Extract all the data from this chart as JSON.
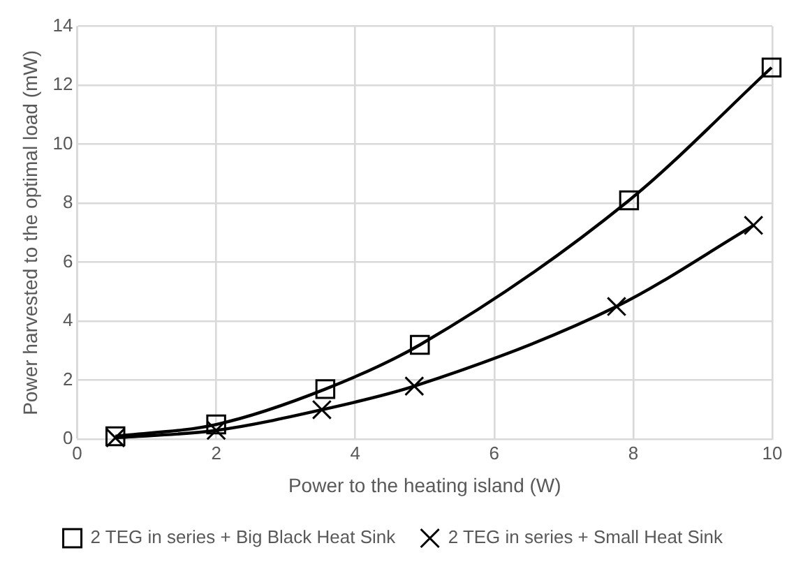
{
  "chart_data": {
    "type": "line",
    "xlabel": "Power to the heating island (W)",
    "ylabel": "Power harvested to the optimal load (mW)",
    "xlim": [
      0,
      10
    ],
    "xticks": [
      0,
      2,
      4,
      6,
      8,
      10
    ],
    "ylim": [
      0,
      14
    ],
    "yticks": [
      0,
      2,
      4,
      6,
      8,
      10,
      12,
      14
    ],
    "grid": true,
    "legend": "bottom",
    "line_style": "solid",
    "series": [
      {
        "name": "2 TEG in series + Big Black Heat Sink",
        "color": "#000000",
        "marker": "square",
        "x": [
          0.55,
          2.0,
          3.57,
          4.93,
          7.94,
          9.99
        ],
        "values": [
          0.1,
          0.5,
          1.7,
          3.2,
          8.1,
          12.6
        ]
      },
      {
        "name": "2 TEG in series + Small Heat Sink",
        "color": "#000000",
        "marker": "cross",
        "x": [
          0.55,
          2.0,
          3.52,
          4.85,
          7.76,
          9.73
        ],
        "values": [
          0.05,
          0.3,
          1.0,
          1.8,
          4.5,
          7.25
        ]
      }
    ]
  }
}
